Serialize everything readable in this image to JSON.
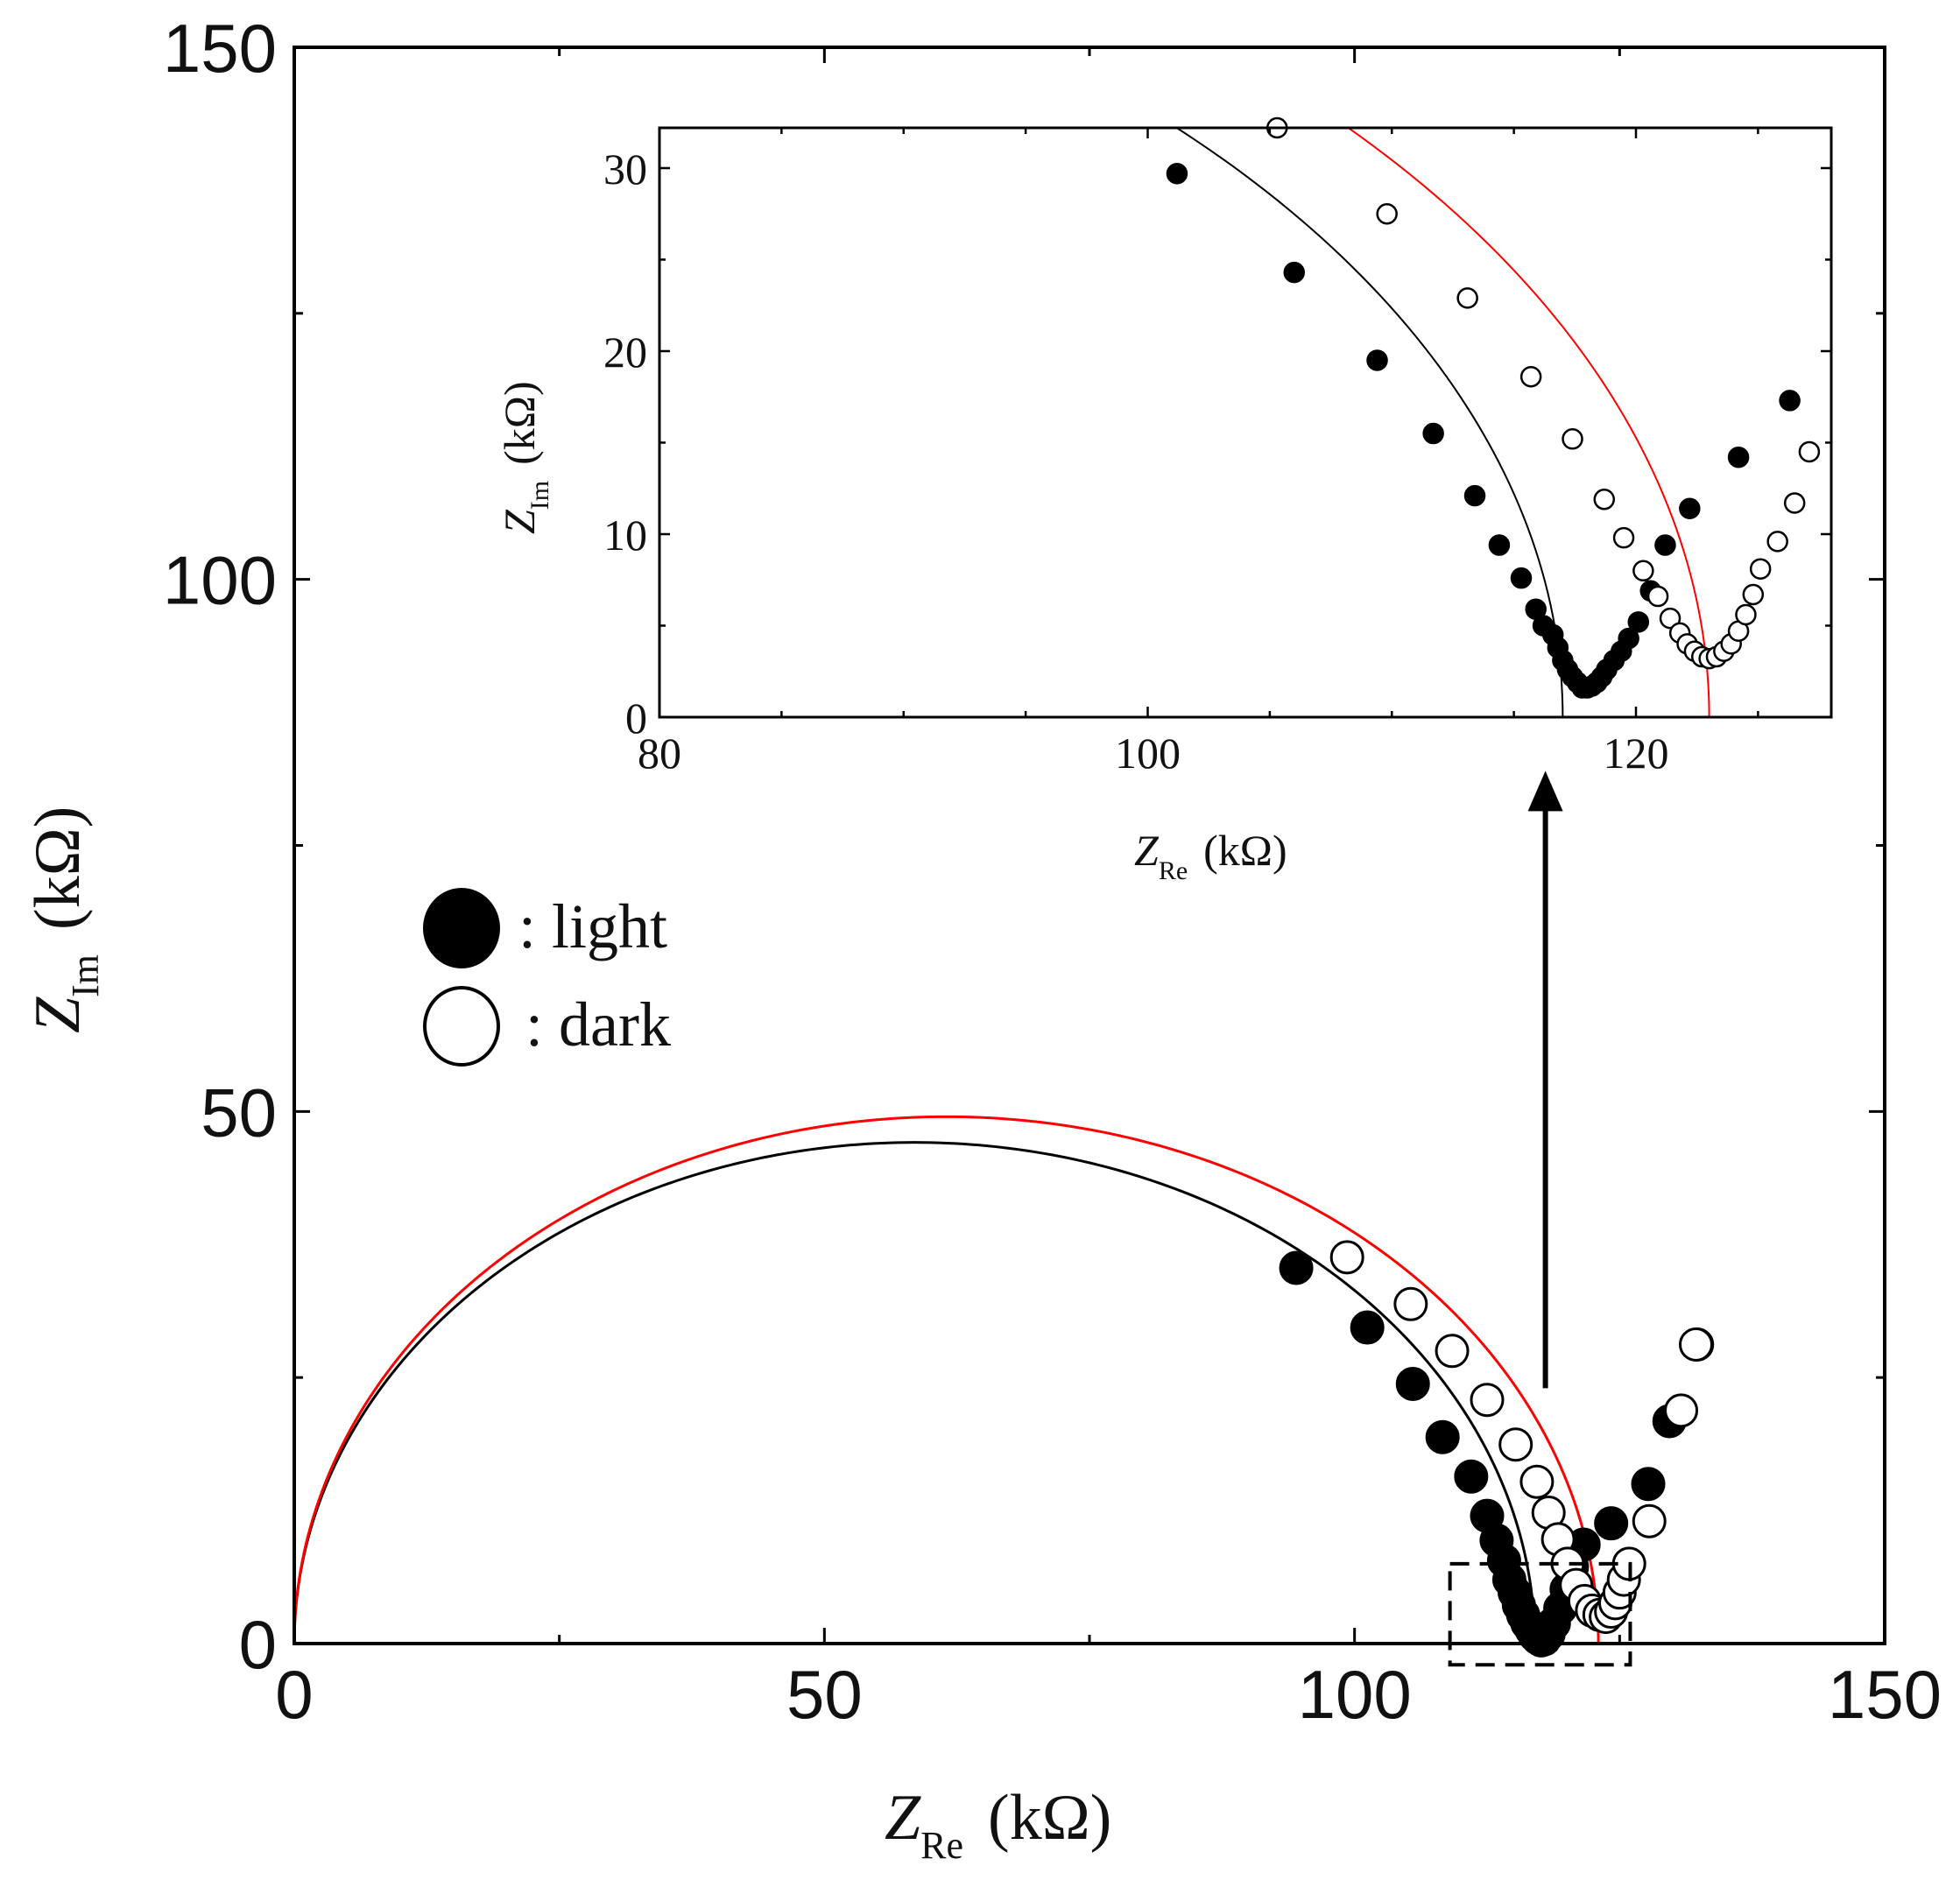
{
  "chart_data": [
    {
      "id": "main",
      "type": "scatter",
      "xlabel": {
        "symbol": "Z",
        "sub": "Re",
        "unit": "(kΩ)"
      },
      "ylabel": {
        "symbol": "Z",
        "sub": "Im",
        "unit": "(kΩ)"
      },
      "xlim": [
        0,
        150
      ],
      "ylim": [
        0,
        150
      ],
      "xticks": [
        0,
        50,
        100,
        150
      ],
      "yticks": [
        0,
        50,
        100,
        150
      ],
      "minor_step": 25,
      "tick_labels_x": [
        "0",
        "50",
        "100",
        "150"
      ],
      "tick_labels_y": [
        "0",
        "50",
        "100",
        "150"
      ],
      "legend_position": "middle-left",
      "legend": [
        {
          "marker": "filled",
          "label": ": light"
        },
        {
          "marker": "open",
          "label": ": dark"
        }
      ],
      "zoom_box": {
        "x": [
          109,
          126
        ],
        "y": [
          -2,
          7.5
        ]
      },
      "arrow": {
        "from": [
          118,
          24
        ],
        "to": [
          118,
          82
        ]
      },
      "series": [
        {
          "name": "light",
          "marker": "filled",
          "points": [
            [
              94.5,
              35.3
            ],
            [
              101.2,
              29.7
            ],
            [
              105.5,
              24.4
            ],
            [
              108.3,
              19.4
            ],
            [
              111,
              15.7
            ],
            [
              112.5,
              12
            ],
            [
              113.4,
              9.7
            ],
            [
              114.1,
              7.8
            ],
            [
              114.6,
              6
            ],
            [
              115.1,
              4.8
            ],
            [
              115.5,
              3.6
            ],
            [
              115.9,
              2.7
            ],
            [
              116.3,
              1.9
            ],
            [
              116.7,
              1.3
            ],
            [
              117,
              0.8
            ],
            [
              117.3,
              0.5
            ],
            [
              117.6,
              0.3
            ],
            [
              117.9,
              0.4
            ],
            [
              118.3,
              0.9
            ],
            [
              118.8,
              1.9
            ],
            [
              119.4,
              3.3
            ],
            [
              120,
              5.1
            ],
            [
              120.5,
              7.2
            ],
            [
              121.6,
              9.3
            ],
            [
              124.2,
              11.3
            ],
            [
              127.7,
              15
            ],
            [
              129.7,
              20.9
            ],
            [
              132.3,
              28.1
            ]
          ]
        },
        {
          "name": "dark",
          "marker": "open",
          "points": [
            [
              99.3,
              36.3
            ],
            [
              105.3,
              31.9
            ],
            [
              109.2,
              27.5
            ],
            [
              112.5,
              22.9
            ],
            [
              115.2,
              18.7
            ],
            [
              117.2,
              15.2
            ],
            [
              118.3,
              12.3
            ],
            [
              119.2,
              9.8
            ],
            [
              120.1,
              7.5
            ],
            [
              120.9,
              5.5
            ],
            [
              121.7,
              4
            ],
            [
              122.4,
              3.1
            ],
            [
              123.1,
              2.7
            ],
            [
              123.7,
              2.5
            ],
            [
              124.2,
              3
            ],
            [
              124.6,
              3.8
            ],
            [
              125,
              4.8
            ],
            [
              125.4,
              6
            ],
            [
              125.9,
              7.5
            ],
            [
              127.8,
              11.5
            ],
            [
              130.8,
              21.9
            ],
            [
              132.2,
              28.1
            ]
          ]
        }
      ],
      "fits": [
        {
          "name": "light fit",
          "color": "#000000",
          "center": [
            58.5,
            0
          ],
          "radius": 58.5,
          "y_scale": 0.805
        },
        {
          "name": "dark fit",
          "color": "#ff0000",
          "center": [
            61.5,
            0
          ],
          "radius": 61.5,
          "y_scale": 0.805
        }
      ]
    },
    {
      "id": "inset",
      "type": "scatter",
      "xlabel": {
        "symbol": "Z",
        "sub": "Re",
        "unit": "(kΩ)"
      },
      "ylabel": {
        "symbol": "Z",
        "sub": "Im",
        "unit": "(kΩ)"
      },
      "xlim": [
        80,
        128
      ],
      "ylim": [
        0,
        32.2
      ],
      "xticks": [
        80,
        100,
        120
      ],
      "yticks": [
        0,
        10,
        20,
        30
      ],
      "minor_step_x": 5,
      "minor_step_y": 5,
      "tick_labels_x": [
        "80",
        "100",
        "120"
      ],
      "tick_labels_y": [
        "0",
        "10",
        "20",
        "30"
      ],
      "series": [
        {
          "name": "light",
          "marker": "filled",
          "points": [
            [
              101.2,
              29.7
            ],
            [
              106,
              24.3
            ],
            [
              109.4,
              19.5
            ],
            [
              111.7,
              15.5
            ],
            [
              113.4,
              12.1
            ],
            [
              114.4,
              9.4
            ],
            [
              115.3,
              7.6
            ],
            [
              115.9,
              5.9
            ],
            [
              116.2,
              5
            ],
            [
              116.6,
              4.5
            ],
            [
              116.8,
              3.8
            ],
            [
              117,
              3.1
            ],
            [
              117.2,
              2.6
            ],
            [
              117.4,
              2.2
            ],
            [
              117.6,
              1.9
            ],
            [
              117.8,
              1.6
            ],
            [
              118,
              1.6
            ],
            [
              118.2,
              1.7
            ],
            [
              118.4,
              1.9
            ],
            [
              118.6,
              2.2
            ],
            [
              118.8,
              2.6
            ],
            [
              119.1,
              3.1
            ],
            [
              119.4,
              3.6
            ],
            [
              119.7,
              4.3
            ],
            [
              120.1,
              5.2
            ],
            [
              120.6,
              6.9
            ],
            [
              121.2,
              9.4
            ],
            [
              122.2,
              11.4
            ],
            [
              124.2,
              14.2
            ],
            [
              126.3,
              17.3
            ]
          ]
        },
        {
          "name": "dark",
          "marker": "open",
          "points": [
            [
              105.3,
              32.2
            ],
            [
              109.8,
              27.5
            ],
            [
              113.1,
              22.9
            ],
            [
              115.7,
              18.6
            ],
            [
              117.4,
              15.2
            ],
            [
              118.7,
              11.9
            ],
            [
              119.5,
              9.8
            ],
            [
              120.3,
              8
            ],
            [
              120.9,
              6.6
            ],
            [
              121.4,
              5.4
            ],
            [
              121.8,
              4.6
            ],
            [
              122.1,
              4
            ],
            [
              122.4,
              3.6
            ],
            [
              122.7,
              3.3
            ],
            [
              123,
              3.2
            ],
            [
              123.3,
              3.3
            ],
            [
              123.6,
              3.6
            ],
            [
              123.9,
              4
            ],
            [
              124.2,
              4.7
            ],
            [
              124.5,
              5.6
            ],
            [
              124.8,
              6.7
            ],
            [
              125.1,
              8.1
            ],
            [
              125.8,
              9.6
            ],
            [
              126.5,
              11.7
            ],
            [
              127.1,
              14.5
            ]
          ]
        }
      ],
      "fits": [
        {
          "name": "light fit",
          "color": "#000000",
          "center": [
            58.5,
            0
          ],
          "radius": 58.5,
          "y_scale": 0.805
        },
        {
          "name": "dark fit",
          "color": "#ff0000",
          "center": [
            61.5,
            0
          ],
          "radius": 61.5,
          "y_scale": 0.805
        }
      ]
    }
  ]
}
